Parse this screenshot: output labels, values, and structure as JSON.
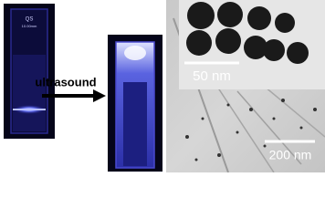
{
  "left_cuvette": {
    "brand": "QS",
    "size": "10.00mm"
  },
  "arrow_label": "ultrasound",
  "tem_image": {
    "inset_scale": "50 nm",
    "main_scale": "200 nm"
  }
}
